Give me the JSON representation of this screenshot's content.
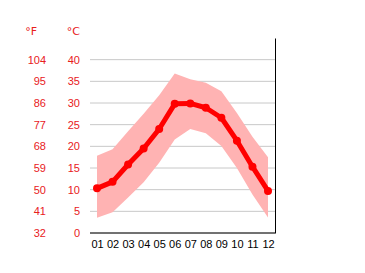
{
  "chart_data": {
    "type": "line",
    "y_label": "°C",
    "y2_label": "°F",
    "categories": [
      "01",
      "02",
      "03",
      "04",
      "05",
      "06",
      "07",
      "08",
      "09",
      "10",
      "11",
      "12"
    ],
    "series": [
      {
        "type": "area",
        "color": "#ffb3b3",
        "low": [
          3.5,
          4.8,
          8.2,
          11.7,
          16.2,
          21.6,
          24,
          23,
          20.1,
          15,
          8.9,
          3.6
        ],
        "high": [
          17.8,
          19.3,
          23.5,
          27.5,
          31.8,
          36.8,
          35.5,
          34.7,
          32.7,
          27.7,
          22.2,
          17.5
        ]
      },
      {
        "type": "line",
        "color": "#ff0000",
        "marker": "circle",
        "values": [
          10.3,
          11.8,
          15.8,
          19.5,
          24,
          29.8,
          29.9,
          28.9,
          26.6,
          21.3,
          15.3,
          9.7
        ]
      }
    ],
    "ylim": [
      0,
      45
    ],
    "yticks": [
      0,
      5,
      10,
      15,
      20,
      25,
      30,
      35,
      40
    ],
    "y2lim": [
      32,
      113
    ],
    "y2ticks": [
      32,
      41,
      50,
      59,
      68,
      77,
      86,
      95,
      104
    ],
    "grid": true
  }
}
